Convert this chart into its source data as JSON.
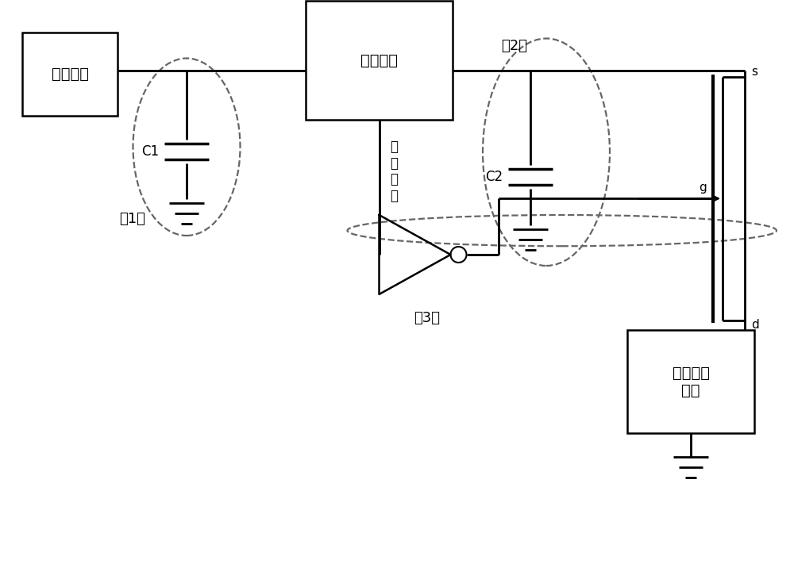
{
  "bg_color": "#ffffff",
  "line_color": "#000000",
  "dashed_color": "#666666",
  "label_rectifier": "整流输出",
  "label_boost": "升压芯片",
  "label_app": "应用电路\n模块",
  "label_zhi": "指\n示\n信\n号",
  "label_1": "（1）",
  "label_2": "（2）",
  "label_3": "（3）",
  "label_C1": "C1",
  "label_C2": "C2",
  "label_s": "s",
  "label_g": "g",
  "label_d": "d"
}
